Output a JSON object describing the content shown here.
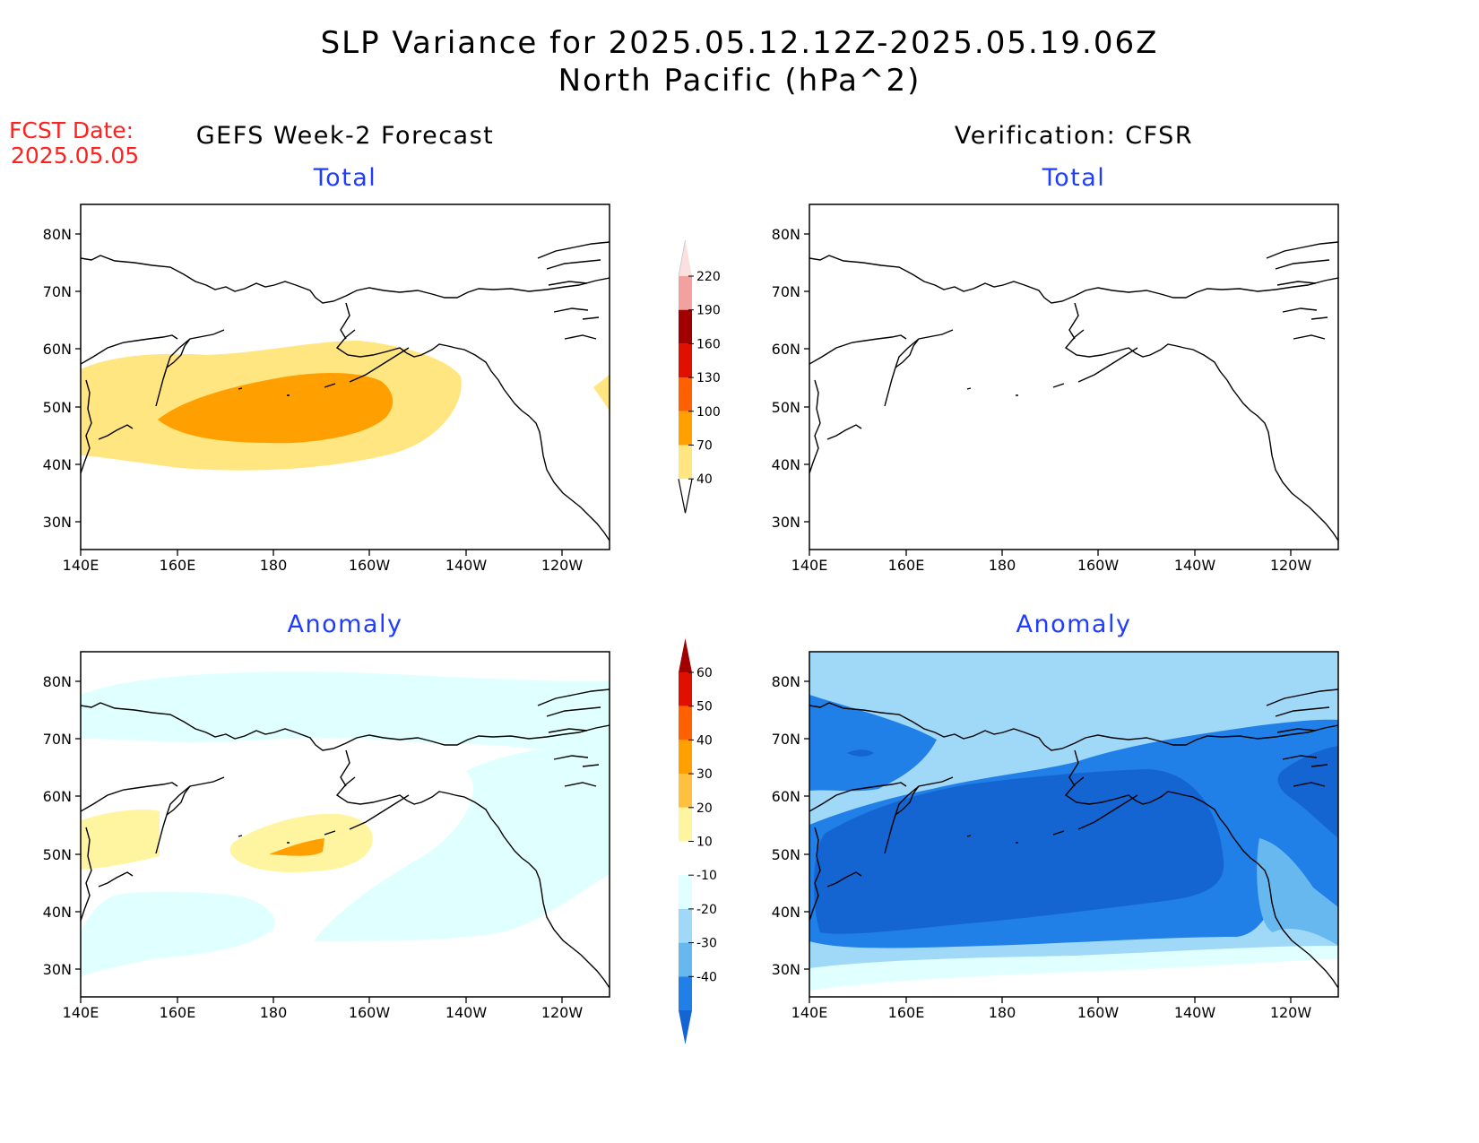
{
  "header": {
    "title_line1": "SLP Variance for 2025.05.12.12Z-2025.05.19.06Z",
    "title_line2": "North Pacific (hPa^2)",
    "fcst_label": "FCST Date:",
    "fcst_date": "2025.05.05"
  },
  "columns": {
    "left_title": "GEFS Week-2 Forecast",
    "right_title": "Verification: CFSR"
  },
  "panels": {
    "fcst_total": {
      "subtitle": "Total"
    },
    "verif_total": {
      "subtitle": "Total"
    },
    "fcst_anom": {
      "subtitle": "Anomaly"
    },
    "verif_anom": {
      "subtitle": "Anomaly"
    }
  },
  "axes": {
    "lat_ticks": [
      "80N",
      "70N",
      "60N",
      "50N",
      "40N",
      "30N"
    ],
    "lon_ticks": [
      "140E",
      "160E",
      "180",
      "160W",
      "140W",
      "120W"
    ]
  },
  "colorbars": {
    "total": {
      "labels": [
        "220",
        "190",
        "160",
        "130",
        "100",
        "70",
        "40"
      ],
      "colors": [
        "#fbe0e0",
        "#f3a0a0",
        "#a00000",
        "#e01000",
        "#ff6000",
        "#ffa000",
        "#ffe680"
      ]
    },
    "anomaly": {
      "labels": [
        "60",
        "50",
        "40",
        "30",
        "20",
        "10",
        "-10",
        "-20",
        "-30",
        "-40"
      ],
      "colors": [
        "#a00000",
        "#e01000",
        "#ff6000",
        "#ffa000",
        "#ffc040",
        "#fff5a0",
        "#ffffff",
        "#e0ffff",
        "#a0d8f8",
        "#68b8f0",
        "#2080e8",
        "#1464d2"
      ]
    }
  }
}
